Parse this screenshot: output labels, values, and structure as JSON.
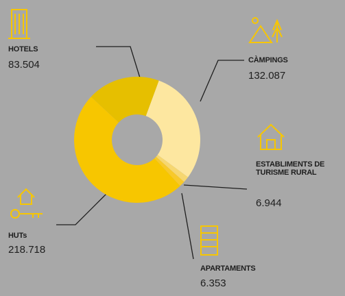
{
  "chart_data": {
    "type": "donut",
    "categories": [
      "HOTELS",
      "CÀMPINGS",
      "ESTABLIMENTS DE TURISME RURAL",
      "APARTAMENTS",
      "HUTs"
    ],
    "values": [
      83504,
      132087,
      6944,
      6353,
      218718
    ],
    "value_labels": [
      "83.504",
      "132.087",
      "6.944",
      "6.353",
      "218.718"
    ],
    "colors": [
      "#e6bf00",
      "#fde7a0",
      "#f6d770",
      "#f8c92a",
      "#f7c600"
    ]
  }
}
